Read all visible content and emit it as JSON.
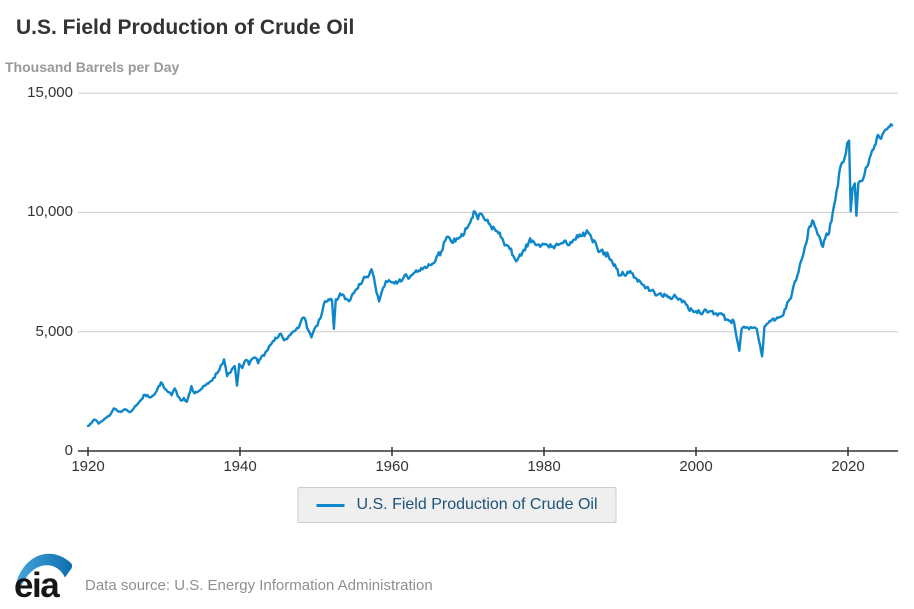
{
  "header": {
    "title": "U.S. Field Production of Crude Oil",
    "subtitle": "Thousand Barrels per Day"
  },
  "legend": {
    "label": "U.S. Field Production of Crude Oil"
  },
  "footer": {
    "logo_text": "eia",
    "source_text": "Data source: U.S. Energy Information Administration"
  },
  "colors": {
    "line": "#0d87c9",
    "grid": "#cccccc",
    "axis": "#333333",
    "title": "#333333",
    "subtitle": "#999999",
    "legend_bg": "#efefef",
    "legend_border": "#cccccc",
    "legend_text": "#1e5378",
    "source_text": "#8f8f8f",
    "logo_swoosh_light": "#45a5dc",
    "logo_swoosh_dark": "#0e6fae"
  },
  "chart_data": {
    "type": "line",
    "title": "U.S. Field Production of Crude Oil",
    "ylabel": "Thousand Barrels per Day",
    "xlabel": "",
    "xlim": [
      1918.7,
      2026.6
    ],
    "ylim": [
      0,
      15000
    ],
    "x_ticks": [
      1920,
      1940,
      1960,
      1980,
      2000,
      2020
    ],
    "y_ticks": [
      {
        "value": 0,
        "label": "0"
      },
      {
        "value": 5000,
        "label": "5,000"
      },
      {
        "value": 10000,
        "label": "10,000"
      },
      {
        "value": 15000,
        "label": "15,000"
      }
    ],
    "grid": "horizontal",
    "legend_position": "bottom-center",
    "frequency": "monthly",
    "monthly_noise": {
      "amplitude_min": 30,
      "amplitude_scale": 0.012,
      "amplitude_max": 140,
      "seed": 7
    },
    "series": [
      {
        "name": "U.S. Field Production of Crude Oil",
        "color": "#0d87c9",
        "points": [
          [
            1920.0,
            1050
          ],
          [
            1920.3,
            1150
          ],
          [
            1920.6,
            1250
          ],
          [
            1921.0,
            1300
          ],
          [
            1921.4,
            1150
          ],
          [
            1921.8,
            1250
          ],
          [
            1922.2,
            1350
          ],
          [
            1922.6,
            1450
          ],
          [
            1923.0,
            1550
          ],
          [
            1923.4,
            1780
          ],
          [
            1923.8,
            1700
          ],
          [
            1924.2,
            1650
          ],
          [
            1924.6,
            1700
          ],
          [
            1925.0,
            1740
          ],
          [
            1925.4,
            1640
          ],
          [
            1925.8,
            1700
          ],
          [
            1926.2,
            1880
          ],
          [
            1926.6,
            2000
          ],
          [
            1927.0,
            2150
          ],
          [
            1927.5,
            2360
          ],
          [
            1928.0,
            2260
          ],
          [
            1928.5,
            2320
          ],
          [
            1929.0,
            2500
          ],
          [
            1929.6,
            2880
          ],
          [
            1930.0,
            2640
          ],
          [
            1930.5,
            2480
          ],
          [
            1931.0,
            2340
          ],
          [
            1931.4,
            2620
          ],
          [
            1931.8,
            2300
          ],
          [
            1932.2,
            2120
          ],
          [
            1932.6,
            2220
          ],
          [
            1933.0,
            2060
          ],
          [
            1933.6,
            2720
          ],
          [
            1934.0,
            2420
          ],
          [
            1934.5,
            2500
          ],
          [
            1935.0,
            2620
          ],
          [
            1935.5,
            2760
          ],
          [
            1936.0,
            2890
          ],
          [
            1936.5,
            3060
          ],
          [
            1937.0,
            3260
          ],
          [
            1937.9,
            3840
          ],
          [
            1938.3,
            3140
          ],
          [
            1938.8,
            3320
          ],
          [
            1939.3,
            3560
          ],
          [
            1939.6,
            2740
          ],
          [
            1939.9,
            3640
          ],
          [
            1940.3,
            3480
          ],
          [
            1940.8,
            3820
          ],
          [
            1941.2,
            3620
          ],
          [
            1941.6,
            3860
          ],
          [
            1942.0,
            3920
          ],
          [
            1942.4,
            3680
          ],
          [
            1943.0,
            4010
          ],
          [
            1943.5,
            4190
          ],
          [
            1944.0,
            4440
          ],
          [
            1944.5,
            4620
          ],
          [
            1945.0,
            4760
          ],
          [
            1945.4,
            4910
          ],
          [
            1945.8,
            4640
          ],
          [
            1946.2,
            4690
          ],
          [
            1946.6,
            4860
          ],
          [
            1947.0,
            5010
          ],
          [
            1947.5,
            5160
          ],
          [
            1948.0,
            5420
          ],
          [
            1948.5,
            5580
          ],
          [
            1949.0,
            5060
          ],
          [
            1949.4,
            4760
          ],
          [
            1949.8,
            5120
          ],
          [
            1950.2,
            5260
          ],
          [
            1950.6,
            5570
          ],
          [
            1951.0,
            6120
          ],
          [
            1951.5,
            6280
          ],
          [
            1952.1,
            6320
          ],
          [
            1952.35,
            5120
          ],
          [
            1952.6,
            6360
          ],
          [
            1953.0,
            6460
          ],
          [
            1953.5,
            6560
          ],
          [
            1954.0,
            6380
          ],
          [
            1954.5,
            6320
          ],
          [
            1955.0,
            6620
          ],
          [
            1955.5,
            6810
          ],
          [
            1956.0,
            7030
          ],
          [
            1956.5,
            7270
          ],
          [
            1957.0,
            7380
          ],
          [
            1957.3,
            7620
          ],
          [
            1957.8,
            6930
          ],
          [
            1958.3,
            6270
          ],
          [
            1958.8,
            6820
          ],
          [
            1959.2,
            7120
          ],
          [
            1959.6,
            7160
          ],
          [
            1960.0,
            7060
          ],
          [
            1960.5,
            7110
          ],
          [
            1961.0,
            7190
          ],
          [
            1961.5,
            7260
          ],
          [
            1962.0,
            7310
          ],
          [
            1962.5,
            7360
          ],
          [
            1963.0,
            7490
          ],
          [
            1963.5,
            7560
          ],
          [
            1964.0,
            7610
          ],
          [
            1964.5,
            7670
          ],
          [
            1965.0,
            7790
          ],
          [
            1965.5,
            7870
          ],
          [
            1966.0,
            8210
          ],
          [
            1966.5,
            8360
          ],
          [
            1967.0,
            8810
          ],
          [
            1967.5,
            8960
          ],
          [
            1968.0,
            8720
          ],
          [
            1968.5,
            8910
          ],
          [
            1969.0,
            8960
          ],
          [
            1969.5,
            9090
          ],
          [
            1970.0,
            9410
          ],
          [
            1970.9,
            10040
          ],
          [
            1971.3,
            9710
          ],
          [
            1971.8,
            9930
          ],
          [
            1972.3,
            9660
          ],
          [
            1973.0,
            9420
          ],
          [
            1973.5,
            9310
          ],
          [
            1974.0,
            9120
          ],
          [
            1974.5,
            8920
          ],
          [
            1975.0,
            8630
          ],
          [
            1975.5,
            8460
          ],
          [
            1976.0,
            8160
          ],
          [
            1976.5,
            8010
          ],
          [
            1977.0,
            8190
          ],
          [
            1977.5,
            8410
          ],
          [
            1978.0,
            8760
          ],
          [
            1978.5,
            8820
          ],
          [
            1979.0,
            8620
          ],
          [
            1979.5,
            8560
          ],
          [
            1980.0,
            8660
          ],
          [
            1980.5,
            8610
          ],
          [
            1981.0,
            8560
          ],
          [
            1981.5,
            8610
          ],
          [
            1982.0,
            8660
          ],
          [
            1982.5,
            8710
          ],
          [
            1983.0,
            8690
          ],
          [
            1983.5,
            8760
          ],
          [
            1984.0,
            8860
          ],
          [
            1984.5,
            8960
          ],
          [
            1985.0,
            9010
          ],
          [
            1985.8,
            9160
          ],
          [
            1986.3,
            8860
          ],
          [
            1987.0,
            8510
          ],
          [
            1987.5,
            8410
          ],
          [
            1988.0,
            8310
          ],
          [
            1988.5,
            8160
          ],
          [
            1989.0,
            7910
          ],
          [
            1989.5,
            7660
          ],
          [
            1990.0,
            7360
          ],
          [
            1990.5,
            7410
          ],
          [
            1991.0,
            7510
          ],
          [
            1991.5,
            7460
          ],
          [
            1992.0,
            7260
          ],
          [
            1992.5,
            7160
          ],
          [
            1993.0,
            6960
          ],
          [
            1993.5,
            6860
          ],
          [
            1994.0,
            6710
          ],
          [
            1994.5,
            6660
          ],
          [
            1995.0,
            6560
          ],
          [
            1995.5,
            6510
          ],
          [
            1996.0,
            6510
          ],
          [
            1996.5,
            6460
          ],
          [
            1997.0,
            6460
          ],
          [
            1997.5,
            6410
          ],
          [
            1998.0,
            6360
          ],
          [
            1998.5,
            6260
          ],
          [
            1999.0,
            5960
          ],
          [
            1999.5,
            5910
          ],
          [
            2000.0,
            5860
          ],
          [
            2000.5,
            5810
          ],
          [
            2001.0,
            5860
          ],
          [
            2001.5,
            5810
          ],
          [
            2002.0,
            5860
          ],
          [
            2002.5,
            5760
          ],
          [
            2003.0,
            5760
          ],
          [
            2003.5,
            5710
          ],
          [
            2004.0,
            5510
          ],
          [
            2004.5,
            5460
          ],
          [
            2005.0,
            5410
          ],
          [
            2005.7,
            4200
          ],
          [
            2006.0,
            5110
          ],
          [
            2006.5,
            5160
          ],
          [
            2007.0,
            5110
          ],
          [
            2007.5,
            5160
          ],
          [
            2008.0,
            5110
          ],
          [
            2008.7,
            3970
          ],
          [
            2009.0,
            5210
          ],
          [
            2009.5,
            5360
          ],
          [
            2010.0,
            5510
          ],
          [
            2010.5,
            5520
          ],
          [
            2011.0,
            5610
          ],
          [
            2011.5,
            5710
          ],
          [
            2012.0,
            6210
          ],
          [
            2012.5,
            6410
          ],
          [
            2013.0,
            7110
          ],
          [
            2013.5,
            7510
          ],
          [
            2014.0,
            8110
          ],
          [
            2014.5,
            8710
          ],
          [
            2014.95,
            9410
          ],
          [
            2015.3,
            9660
          ],
          [
            2015.8,
            9310
          ],
          [
            2016.2,
            9010
          ],
          [
            2016.7,
            8560
          ],
          [
            2017.0,
            8910
          ],
          [
            2017.5,
            9110
          ],
          [
            2018.0,
            10010
          ],
          [
            2018.5,
            10910
          ],
          [
            2019.0,
            11910
          ],
          [
            2019.4,
            12110
          ],
          [
            2019.9,
            12900
          ],
          [
            2020.15,
            13010
          ],
          [
            2020.35,
            10050
          ],
          [
            2020.6,
            11010
          ],
          [
            2020.9,
            11210
          ],
          [
            2021.1,
            9860
          ],
          [
            2021.35,
            11210
          ],
          [
            2021.7,
            11310
          ],
          [
            2022.0,
            11410
          ],
          [
            2022.5,
            11910
          ],
          [
            2023.0,
            12410
          ],
          [
            2023.5,
            12810
          ],
          [
            2023.95,
            13250
          ],
          [
            2024.2,
            13110
          ],
          [
            2024.5,
            13240
          ],
          [
            2024.9,
            13460
          ],
          [
            2025.2,
            13510
          ],
          [
            2025.5,
            13590
          ],
          [
            2025.8,
            13650
          ]
        ]
      }
    ]
  }
}
